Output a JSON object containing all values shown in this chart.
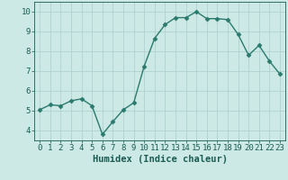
{
  "x": [
    0,
    1,
    2,
    3,
    4,
    5,
    6,
    7,
    8,
    9,
    10,
    11,
    12,
    13,
    14,
    15,
    16,
    17,
    18,
    19,
    20,
    21,
    22,
    23
  ],
  "y": [
    5.05,
    5.3,
    5.25,
    5.5,
    5.6,
    5.25,
    3.8,
    4.45,
    5.05,
    5.4,
    7.25,
    8.65,
    9.35,
    9.7,
    9.7,
    10.0,
    9.65,
    9.65,
    9.6,
    8.85,
    7.8,
    8.3,
    7.5,
    6.85
  ],
  "xlabel": "Humidex (Indice chaleur)",
  "ylim": [
    3.5,
    10.5
  ],
  "xlim": [
    -0.5,
    23.5
  ],
  "line_color": "#2a7a6e",
  "marker": "D",
  "marker_size": 2.5,
  "bg_color": "#cde9e6",
  "grid_color": "#aacfcc",
  "text_color": "#1a5c52",
  "xlabel_fontsize": 7.5,
  "tick_fontsize": 6.5,
  "yticks": [
    4,
    5,
    6,
    7,
    8,
    9,
    10
  ],
  "xticks": [
    0,
    1,
    2,
    3,
    4,
    5,
    6,
    7,
    8,
    9,
    10,
    11,
    12,
    13,
    14,
    15,
    16,
    17,
    18,
    19,
    20,
    21,
    22,
    23
  ]
}
